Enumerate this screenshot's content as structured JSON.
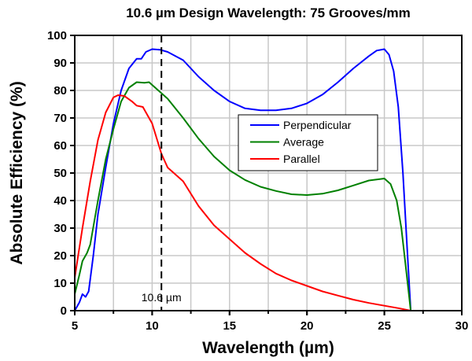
{
  "chart_data": {
    "type": "line",
    "title": "10.6 µm Design Wavelength: 75 Grooves/mm",
    "xlabel": "Wavelength (µm)",
    "ylabel": "Absolute Efficiency (%)",
    "xlim": [
      5,
      30
    ],
    "ylim": [
      0,
      100
    ],
    "xticks": [
      "5",
      "10",
      "15",
      "20",
      "25",
      "30"
    ],
    "yticks": [
      "0",
      "10",
      "20",
      "30",
      "40",
      "50",
      "60",
      "70",
      "80",
      "90",
      "100"
    ],
    "grid": true,
    "legend_position": "center-right",
    "annotation": {
      "label": "10.6 µm",
      "x": 10.6
    },
    "series": [
      {
        "name": "Perpendicular",
        "color": "#0000ff",
        "x": [
          5,
          5.3,
          5.5,
          5.7,
          5.9,
          6.2,
          6.5,
          7,
          7.5,
          8,
          8.5,
          9,
          9.3,
          9.6,
          10,
          10.5,
          11,
          12,
          13,
          14,
          15,
          16,
          17,
          18,
          19,
          20,
          21,
          22,
          23,
          24,
          24.5,
          25,
          25.3,
          25.6,
          25.9,
          26.2,
          26.5,
          26.7
        ],
        "y": [
          0,
          3,
          6,
          5,
          7,
          20,
          35,
          52,
          68,
          80,
          88,
          91.5,
          91.5,
          94,
          95,
          94.8,
          94,
          91,
          85,
          80,
          76,
          73.5,
          72.8,
          72.8,
          73.5,
          75.3,
          78.5,
          83,
          88,
          92.5,
          94.5,
          95,
          93,
          87,
          74,
          50,
          20,
          0
        ]
      },
      {
        "name": "Average",
        "color": "#008000",
        "x": [
          5,
          5.3,
          5.5,
          5.8,
          6,
          6.5,
          7,
          7.5,
          8,
          8.5,
          9,
          9.5,
          9.8,
          10,
          11,
          12,
          13,
          14,
          15,
          16,
          17,
          18,
          19,
          20,
          21,
          22,
          23,
          24,
          25,
          25.4,
          25.8,
          26.1,
          26.4,
          26.7
        ],
        "y": [
          6,
          13,
          18,
          21,
          24,
          40,
          55,
          66,
          76,
          81,
          83,
          82.8,
          83,
          82,
          77,
          70,
          62.5,
          56,
          51,
          47.5,
          45,
          43.5,
          42.3,
          42,
          42.5,
          43.7,
          45.5,
          47.3,
          48,
          46,
          40,
          30,
          15,
          0
        ]
      },
      {
        "name": "Parallel",
        "color": "#ff0000",
        "x": [
          5,
          5.5,
          6,
          6.5,
          7,
          7.5,
          7.8,
          8.2,
          8.7,
          9,
          9.4,
          10,
          10.6,
          11,
          12,
          13,
          14,
          15,
          16,
          17,
          18,
          19,
          20,
          21,
          22,
          23,
          24,
          25,
          26,
          26.7
        ],
        "y": [
          12,
          30,
          47,
          62,
          72,
          77.5,
          78.3,
          78,
          76,
          74.5,
          74,
          68,
          57,
          52,
          47,
          38,
          31,
          26,
          21,
          17,
          13.5,
          11,
          9,
          7,
          5.5,
          4,
          2.8,
          1.8,
          0.8,
          0
        ]
      }
    ]
  }
}
